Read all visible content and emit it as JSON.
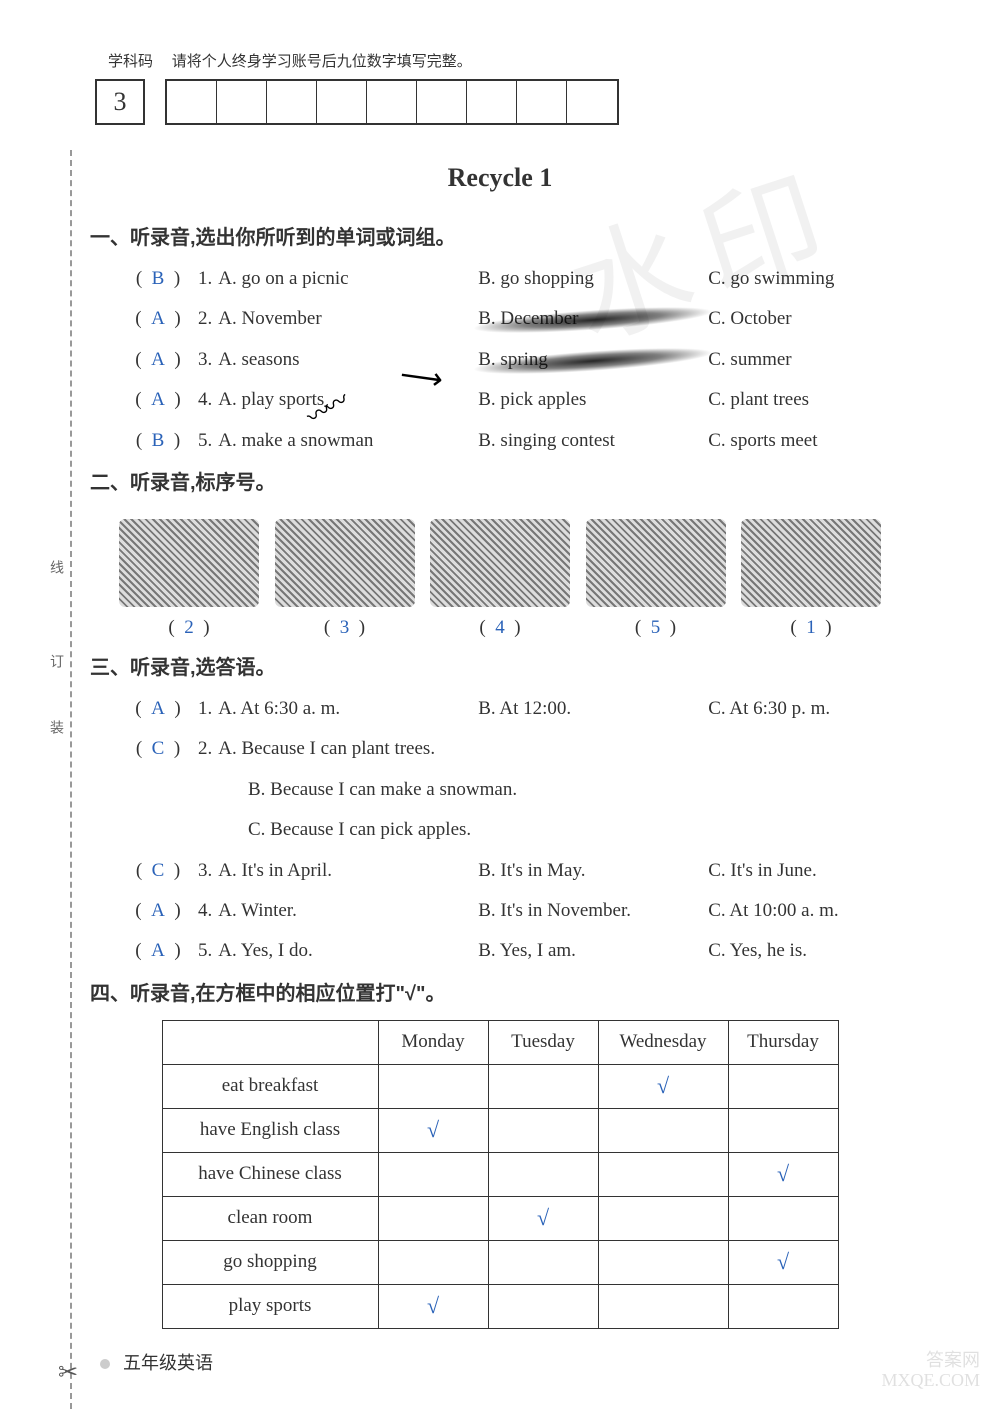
{
  "header": {
    "code_label_prefix": "学科码",
    "code_instruction": "请将个人终身学习账号后九位数字填写完整。",
    "fixed_digit": "3",
    "blank_cell_count": 9
  },
  "title": "Recycle 1",
  "colors": {
    "answer": "#2a62b8",
    "text": "#333333",
    "border": "#333333",
    "background": "#ffffff"
  },
  "section1": {
    "heading": "一、听录音,选出你所听到的单词或词组。",
    "items": [
      {
        "ans": "B",
        "num": "1.",
        "a": "A. go on a picnic",
        "b": "B. go shopping",
        "c": "C. go swimming",
        "b_scribble": false
      },
      {
        "ans": "A",
        "num": "2.",
        "a": "A. November",
        "b": "B. December",
        "c": "C. October",
        "b_scribble": true
      },
      {
        "ans": "A",
        "num": "3.",
        "a": "A. seasons",
        "b": "B. spring",
        "c": "C. summer",
        "b_scribble": true
      },
      {
        "ans": "A",
        "num": "4.",
        "a": "A. play sports",
        "b": "B. pick apples",
        "c": "C. plant trees",
        "b_scribble": false
      },
      {
        "ans": "B",
        "num": "5.",
        "a": "A. make a snowman",
        "b": "B. singing contest",
        "c": "C. sports meet",
        "b_scribble": false
      }
    ]
  },
  "section2": {
    "heading": "二、听录音,标序号。",
    "order": [
      "2",
      "3",
      "4",
      "5",
      "1"
    ]
  },
  "section3": {
    "heading": "三、听录音,选答语。",
    "items": [
      {
        "ans": "A",
        "num": "1.",
        "a": "A. At 6:30 a. m.",
        "b": "B. At 12:00.",
        "c": "C. At 6:30 p. m."
      },
      {
        "ans": "C",
        "num": "2.",
        "a": "A. Because I can plant trees.",
        "b": "B. Because I can make a snowman.",
        "c": "C. Because I can pick apples."
      },
      {
        "ans": "C",
        "num": "3.",
        "a": "A. It's in April.",
        "b": "B. It's in May.",
        "c": "C. It's in June."
      },
      {
        "ans": "A",
        "num": "4.",
        "a": "A. Winter.",
        "b": "B. It's in November.",
        "c": "C. At 10:00 a. m."
      },
      {
        "ans": "A",
        "num": "5.",
        "a": "A. Yes, I do.",
        "b": "B. Yes, I am.",
        "c": "C. Yes, he is."
      }
    ]
  },
  "section4": {
    "heading": "四、听录音,在方框中的相应位置打\"√\"。",
    "columns": [
      "",
      "Monday",
      "Tuesday",
      "Wednesday",
      "Thursday"
    ],
    "rows": [
      {
        "label": "eat breakfast",
        "checks": [
          false,
          false,
          true,
          false
        ]
      },
      {
        "label": "have English class",
        "checks": [
          true,
          false,
          false,
          false
        ]
      },
      {
        "label": "have Chinese class",
        "checks": [
          false,
          false,
          false,
          true
        ]
      },
      {
        "label": "clean room",
        "checks": [
          false,
          true,
          false,
          false
        ]
      },
      {
        "label": "go shopping",
        "checks": [
          false,
          false,
          false,
          true
        ]
      },
      {
        "label": "play sports",
        "checks": [
          true,
          false,
          false,
          false
        ]
      }
    ],
    "check_mark": "√"
  },
  "footer": {
    "text": "五年级英语"
  },
  "side_labels": {
    "a": "线",
    "b": "订",
    "c": "装"
  },
  "watermark": {
    "corner_line1": "答案网",
    "corner_line2": "MXQE.COM",
    "big": "水印"
  },
  "overlays": {
    "arrow": "⟶",
    "squiggle": "〰〰"
  },
  "scissors": "✂"
}
